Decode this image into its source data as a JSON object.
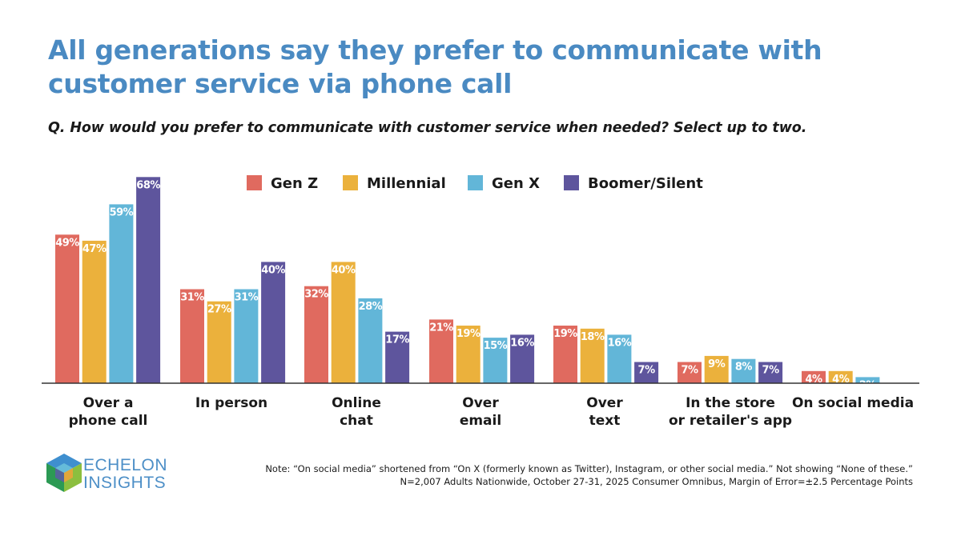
{
  "title": "All generations say they prefer to communicate with customer service via phone call",
  "question": "Q. How would you prefer to communicate with customer service when needed? Select up to two.",
  "colors": {
    "title": "#4a8ac2",
    "gen_z": "#e06a5f",
    "millennial": "#ebb13c",
    "gen_x": "#62b6d8",
    "boomer": "#5e559d"
  },
  "chart_data": {
    "type": "bar",
    "title": "All generations say they prefer to communicate with customer service via phone call",
    "ylim": [
      0,
      75
    ],
    "grid": false,
    "legend_position": "top-center",
    "categories": [
      [
        "Over a",
        "phone call"
      ],
      [
        "In person"
      ],
      [
        "Online",
        "chat"
      ],
      [
        "Over",
        "email"
      ],
      [
        "Over",
        "text"
      ],
      [
        "In the store",
        "or retailer's app"
      ],
      [
        "On social media"
      ]
    ],
    "series": [
      {
        "name": "Gen Z",
        "values": [
          49,
          31,
          32,
          21,
          19,
          7,
          4
        ]
      },
      {
        "name": "Millennial",
        "values": [
          47,
          27,
          40,
          19,
          18,
          9,
          4
        ]
      },
      {
        "name": "Gen X",
        "values": [
          59,
          31,
          28,
          15,
          16,
          8,
          2
        ]
      },
      {
        "name": "Boomer/Silent",
        "values": [
          68,
          40,
          17,
          16,
          7,
          7,
          null
        ]
      }
    ],
    "value_suffix": "%"
  },
  "logo": {
    "line1": "ECHELON",
    "line2": "INSIGHTS"
  },
  "note": {
    "line1": "Note: “On social media” shortened from “On X (formerly known as Twitter), Instagram, or other social media.” Not showing “None of these.”",
    "line2": "N=2,007 Adults Nationwide, October 27-31, 2025 Consumer Omnibus, Margin of Error=±2.5 Percentage Points"
  }
}
